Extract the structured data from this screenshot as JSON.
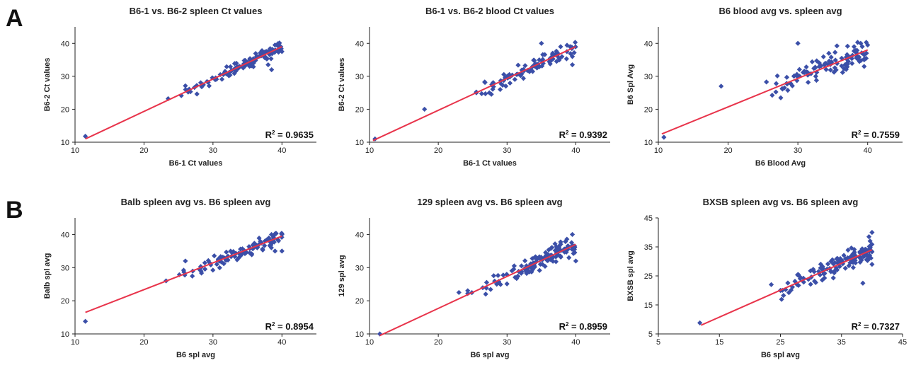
{
  "panel_labels": [
    "A",
    "B"
  ],
  "colors": {
    "points": "#3b4fa8",
    "fit_line": "#e8344b",
    "axis": "#222222"
  },
  "chart_data": [
    {
      "type": "scatter",
      "panel": "A",
      "title": "B6-1 vs. B6-2 spleen Ct values",
      "xlabel": "B6-1 Ct values",
      "ylabel": "B6-2 Ct values",
      "xlim": [
        10,
        45
      ],
      "ylim": [
        10,
        45
      ],
      "xticks": [
        10,
        20,
        30,
        40
      ],
      "yticks": [
        10,
        20,
        30,
        40
      ],
      "r2": "0.9635",
      "fit": {
        "x": [
          11.5,
          40
        ],
        "y": [
          11,
          39
        ]
      },
      "seed": 11,
      "n": 110,
      "spread": 1.2,
      "extra_points": [
        [
          11.5,
          11.8
        ],
        [
          23.5,
          23.2
        ],
        [
          38.5,
          32
        ],
        [
          38,
          33.5
        ],
        [
          40,
          37.5
        ]
      ]
    },
    {
      "type": "scatter",
      "panel": "A",
      "title": "B6-1 vs. B6-2 blood Ct values",
      "xlabel": "B6-1 Ct values",
      "ylabel": "B6-2 Ct values",
      "xlim": [
        10,
        45
      ],
      "ylim": [
        10,
        45
      ],
      "xticks": [
        10,
        20,
        30,
        40
      ],
      "yticks": [
        10,
        20,
        30,
        40
      ],
      "r2": "0.9392",
      "fit": {
        "x": [
          10.5,
          40
        ],
        "y": [
          10.5,
          39
        ]
      },
      "seed": 23,
      "n": 90,
      "spread": 1.8,
      "extra_points": [
        [
          10.8,
          11
        ],
        [
          18,
          20
        ],
        [
          35,
          40
        ],
        [
          39.5,
          36
        ],
        [
          39.5,
          33.5
        ],
        [
          29,
          26
        ]
      ]
    },
    {
      "type": "scatter",
      "panel": "A",
      "title": "B6 blood avg vs. spleen avg",
      "xlabel": "B6 Blood Avg",
      "ylabel": "B6 Spl Avg",
      "xlim": [
        10,
        45
      ],
      "ylim": [
        10,
        45
      ],
      "xticks": [
        10,
        20,
        30,
        40
      ],
      "yticks": [
        10,
        20,
        30,
        40
      ],
      "r2": "0.7559",
      "fit": {
        "x": [
          10.5,
          40
        ],
        "y": [
          12.5,
          38
        ]
      },
      "seed": 37,
      "n": 100,
      "spread": 2.6,
      "extra_points": [
        [
          10.8,
          11.5
        ],
        [
          19,
          27
        ],
        [
          30,
          40
        ],
        [
          39.5,
          33
        ],
        [
          39.5,
          35
        ],
        [
          39.5,
          36.5
        ],
        [
          40,
          39.5
        ],
        [
          39,
          40
        ]
      ]
    },
    {
      "type": "scatter",
      "panel": "B",
      "title": "Balb spleen avg vs. B6 spleen avg",
      "xlabel": "B6 spl avg",
      "ylabel": "Balb spl avg",
      "xlim": [
        10,
        45
      ],
      "ylim": [
        10,
        45
      ],
      "xticks": [
        10,
        20,
        30,
        40
      ],
      "yticks": [
        10,
        20,
        30,
        40
      ],
      "r2": "0.8954",
      "fit": {
        "x": [
          11.5,
          40
        ],
        "y": [
          16.5,
          39.5
        ]
      },
      "seed": 53,
      "n": 100,
      "spread": 1.6,
      "extra_points": [
        [
          11.5,
          13.8
        ],
        [
          23.2,
          26
        ],
        [
          26,
          32
        ],
        [
          39,
          35
        ],
        [
          40,
          35
        ],
        [
          40,
          40
        ]
      ]
    },
    {
      "type": "scatter",
      "panel": "B",
      "title": "129 spleen avg vs. B6 spleen avg",
      "xlabel": "B6 spl avg",
      "ylabel": "129 spl avg",
      "xlim": [
        10,
        45
      ],
      "ylim": [
        10,
        45
      ],
      "xticks": [
        10,
        20,
        30,
        40
      ],
      "yticks": [
        10,
        20,
        30,
        40
      ],
      "r2": "0.8959",
      "fit": {
        "x": [
          11.5,
          40
        ],
        "y": [
          9.5,
          37
        ]
      },
      "seed": 71,
      "n": 130,
      "spread": 1.7,
      "extra_points": [
        [
          11.5,
          10
        ],
        [
          23,
          22.5
        ],
        [
          39.5,
          40
        ],
        [
          40,
          32
        ],
        [
          39,
          33
        ]
      ]
    },
    {
      "type": "scatter",
      "panel": "B",
      "title": "BXSB spleen avg vs. B6 spleen avg",
      "xlabel": "B6 spl avg",
      "ylabel": "BXSB spl avg",
      "xlim": [
        5,
        45
      ],
      "ylim": [
        5,
        45
      ],
      "xticks": [
        5,
        15,
        25,
        35,
        45
      ],
      "yticks": [
        5,
        15,
        25,
        35,
        45
      ],
      "r2": "0.7327",
      "fit": {
        "x": [
          12,
          40
        ],
        "y": [
          8,
          34
        ]
      },
      "seed": 97,
      "n": 140,
      "spread": 2.2,
      "extra_points": [
        [
          11.8,
          8.8
        ],
        [
          23.5,
          22
        ],
        [
          25,
          20
        ],
        [
          38.5,
          22.5
        ],
        [
          39.5,
          38.5
        ],
        [
          40,
          40
        ],
        [
          40,
          29
        ],
        [
          39.5,
          31
        ]
      ]
    }
  ]
}
